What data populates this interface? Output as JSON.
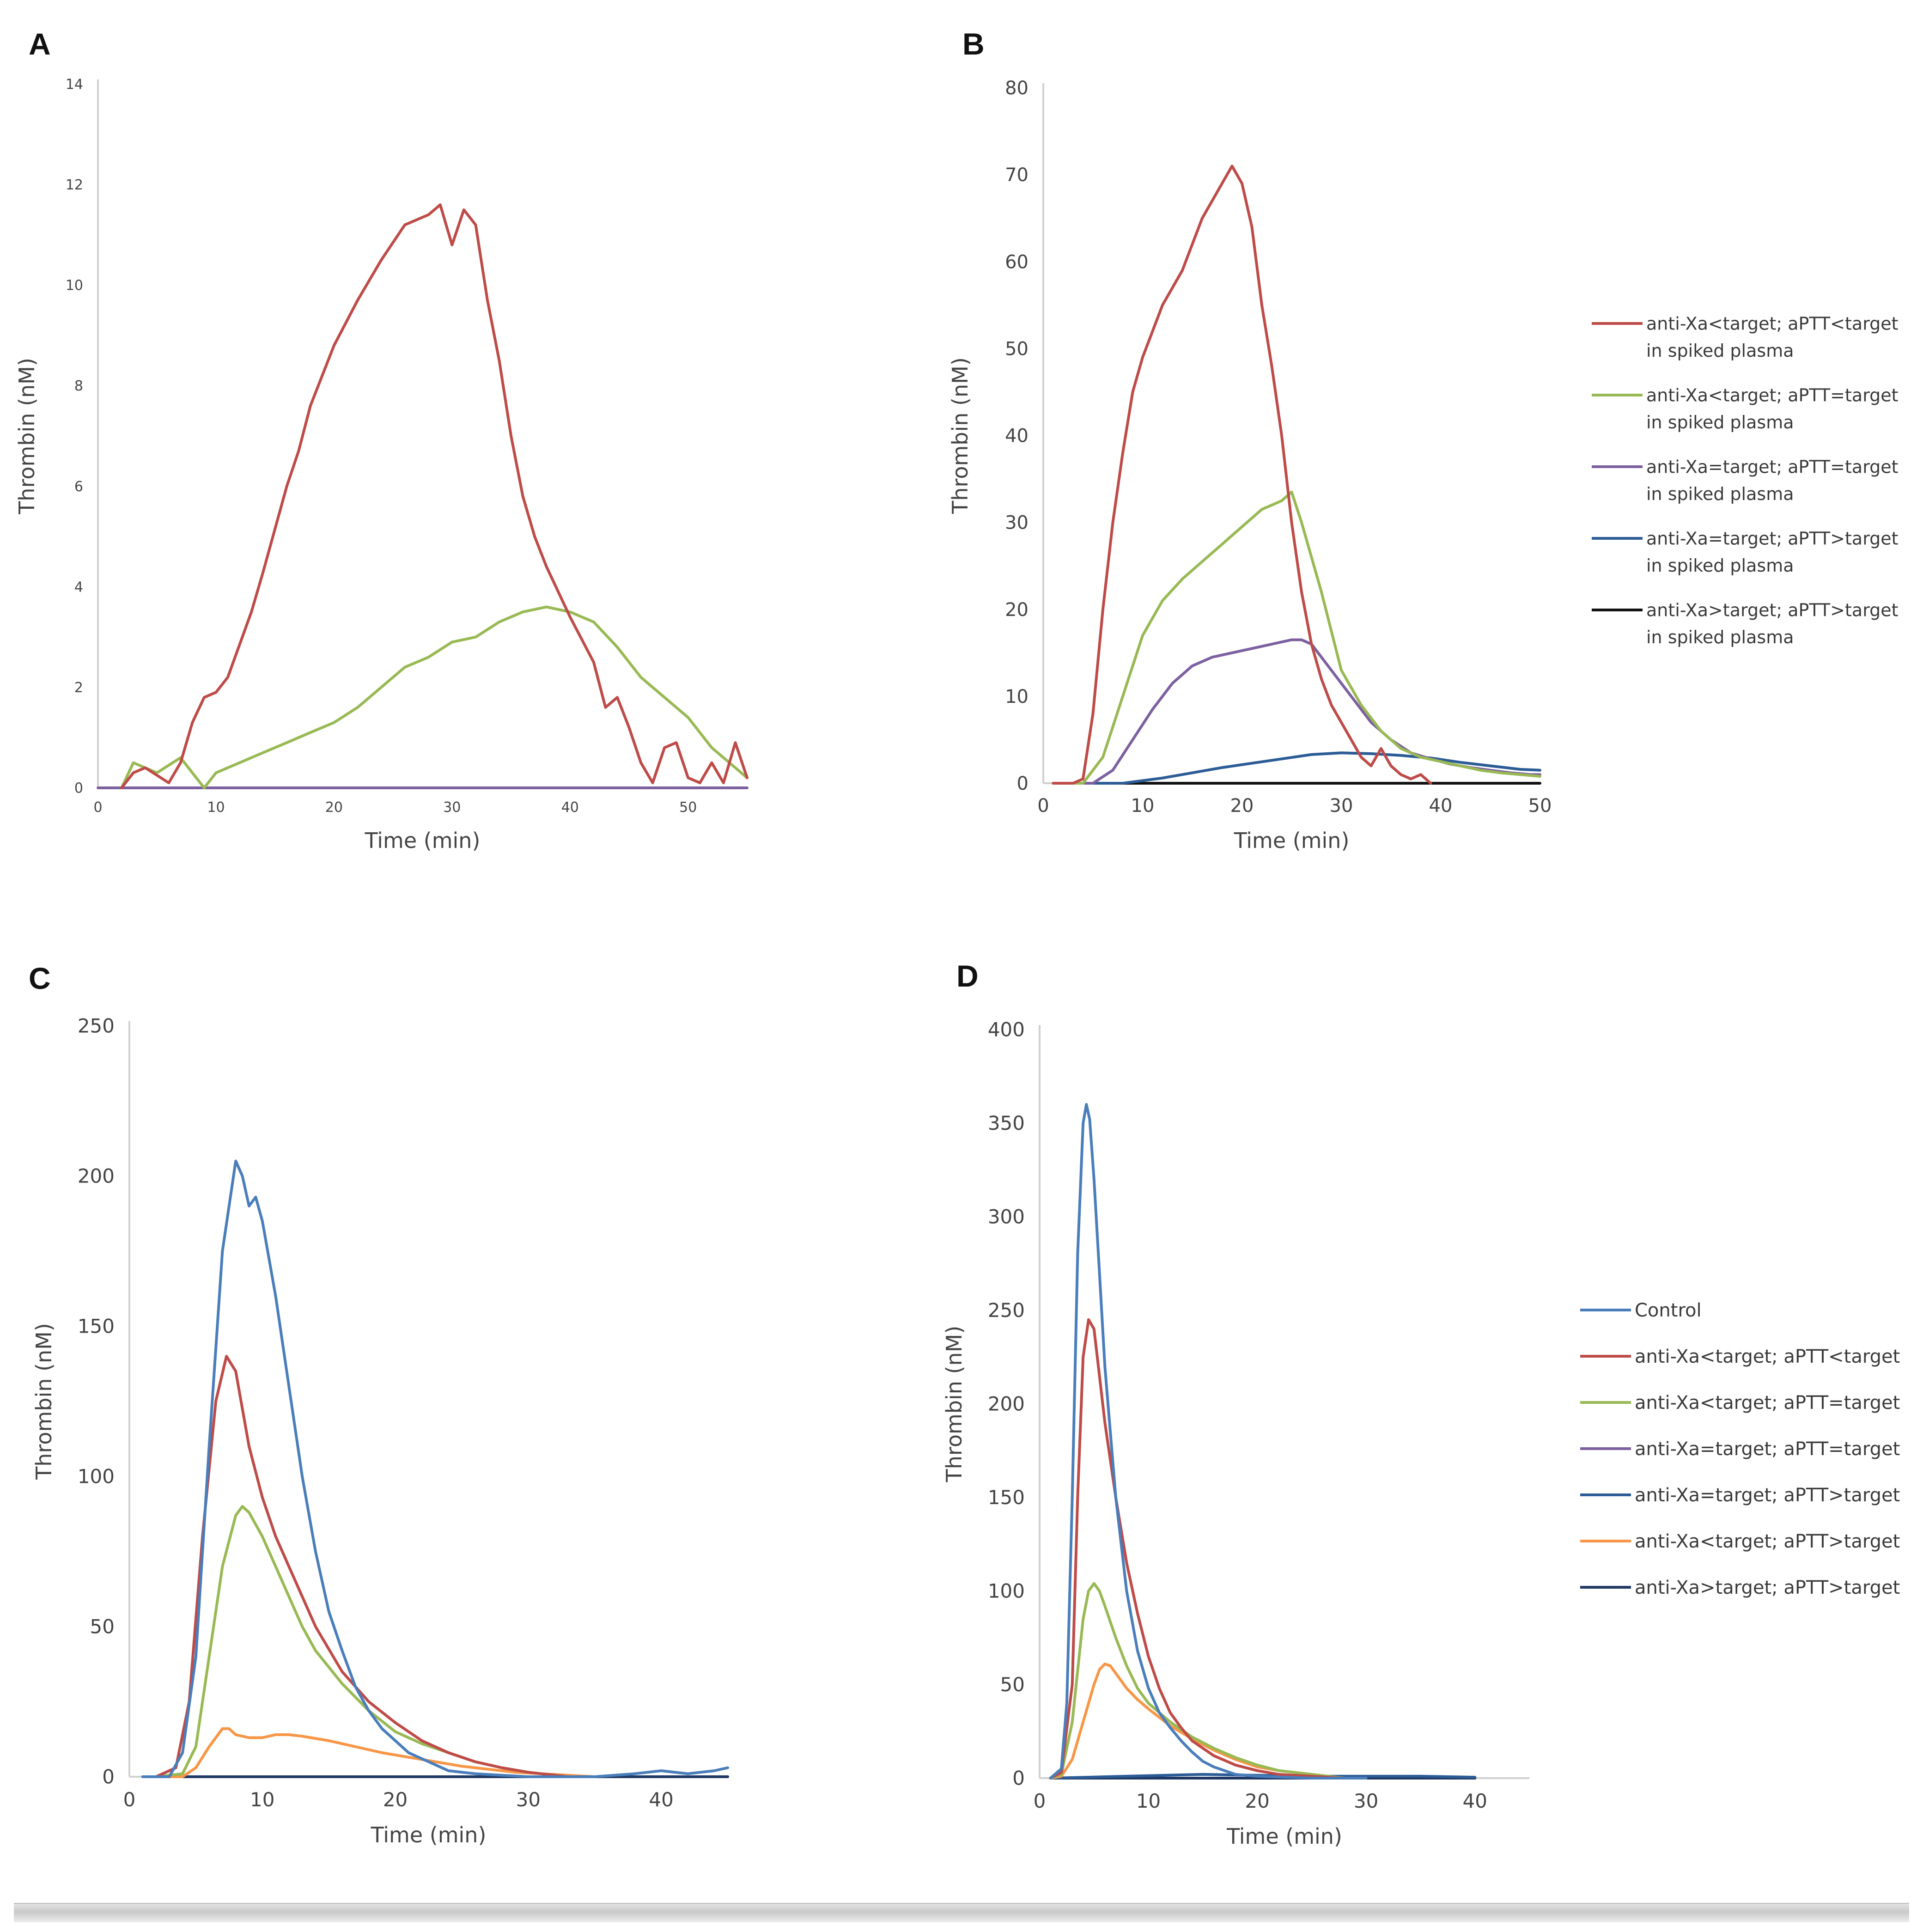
{
  "colors": {
    "control": "#4a7ebb",
    "red": "#be4b48",
    "green": "#98b954",
    "purple": "#7d60a0",
    "blue": "#2c5c96",
    "orange": "#f79646",
    "black": "#111111",
    "darkblue": "#1f3864"
  },
  "chart_data": [
    {
      "panel": "A",
      "type": "line",
      "title": "",
      "xlabel": "Time (min)",
      "ylabel": "Thrombin (nM)",
      "xlim": [
        0,
        55
      ],
      "ylim": [
        0,
        14
      ],
      "xticks": [
        0,
        10,
        20,
        30,
        40,
        50
      ],
      "yticks": [
        0,
        2,
        4,
        6,
        8,
        10,
        12,
        14
      ],
      "legend": "none",
      "series": [
        {
          "name": "anti-Xa<target; aPTT<target in spiked plasma",
          "color": "#be4b48",
          "x": [
            2,
            3,
            4,
            6,
            7,
            8,
            9,
            10,
            11,
            13,
            14,
            16,
            17,
            18,
            20,
            22,
            24,
            26,
            28,
            29,
            30,
            31,
            32,
            33,
            34,
            35,
            36,
            37,
            38,
            40,
            42,
            43,
            44,
            45,
            46,
            47,
            48,
            49,
            50,
            51,
            52,
            53,
            54,
            55
          ],
          "y": [
            0,
            0.3,
            0.4,
            0.1,
            0.5,
            1.3,
            1.8,
            1.9,
            2.2,
            3.5,
            4.3,
            6.0,
            6.7,
            7.6,
            8.8,
            9.7,
            10.5,
            11.2,
            11.4,
            11.6,
            10.8,
            11.5,
            11.2,
            9.7,
            8.5,
            7.0,
            5.8,
            5.0,
            4.4,
            3.4,
            2.5,
            1.6,
            1.8,
            1.2,
            0.5,
            0.1,
            0.8,
            0.9,
            0.2,
            0.1,
            0.5,
            0.1,
            0.9,
            0.2
          ]
        },
        {
          "name": "anti-Xa<target; aPTT=target in spiked plasma",
          "color": "#98b954",
          "x": [
            2,
            3,
            5,
            7,
            9,
            10,
            12,
            14,
            16,
            18,
            20,
            22,
            24,
            26,
            28,
            30,
            32,
            34,
            36,
            38,
            40,
            42,
            44,
            46,
            48,
            50,
            52,
            54,
            55
          ],
          "y": [
            0,
            0.5,
            0.3,
            0.6,
            0,
            0.3,
            0.5,
            0.7,
            0.9,
            1.1,
            1.3,
            1.6,
            2.0,
            2.4,
            2.6,
            2.9,
            3.0,
            3.3,
            3.5,
            3.6,
            3.5,
            3.3,
            2.8,
            2.2,
            1.8,
            1.4,
            0.8,
            0.4,
            0.2
          ]
        },
        {
          "name": "anti-Xa=target; aPTT=target in spiked plasma",
          "color": "#7d60a0",
          "x": [
            0,
            55
          ],
          "y": [
            0,
            0
          ]
        }
      ]
    },
    {
      "panel": "B",
      "type": "line",
      "title": "",
      "xlabel": "Time (min)",
      "ylabel": "Thrombin (nM)",
      "xlim": [
        0,
        50
      ],
      "ylim": [
        0,
        80
      ],
      "xticks": [
        0,
        10,
        20,
        30,
        40,
        50
      ],
      "yticks": [
        0,
        10,
        20,
        30,
        40,
        50,
        60,
        70,
        80
      ],
      "legend": "right",
      "series": [
        {
          "name": "anti-Xa<target; aPTT<target in spiked plasma",
          "legend_line1": "anti-Xa<target; aPTT<target",
          "legend_line2": "in spiked plasma",
          "color": "#be4b48",
          "x": [
            1,
            3,
            4,
            5,
            6,
            7,
            8,
            9,
            10,
            11,
            12,
            13,
            14,
            15,
            16,
            17,
            18,
            19,
            20,
            21,
            22,
            23,
            24,
            25,
            26,
            27,
            28,
            29,
            30,
            31,
            32,
            33,
            34,
            35,
            36,
            37,
            38,
            39
          ],
          "y": [
            0,
            0,
            0.5,
            8,
            20,
            30,
            38,
            45,
            49,
            52,
            55,
            57,
            59,
            62,
            65,
            67,
            69,
            71,
            69,
            64,
            55,
            48,
            40,
            30,
            22,
            16,
            12,
            9,
            7,
            5,
            3,
            2,
            4,
            2,
            1,
            0.5,
            1,
            0
          ]
        },
        {
          "name": "anti-Xa<target; aPTT=target in spiked plasma",
          "legend_line1": "anti-Xa<target; aPTT=target",
          "legend_line2": "in spiked plasma",
          "color": "#98b954",
          "x": [
            1,
            4,
            6,
            8,
            10,
            12,
            14,
            16,
            18,
            20,
            22,
            24,
            25,
            26,
            28,
            30,
            32,
            34,
            36,
            38,
            40,
            42,
            44,
            46,
            48,
            50
          ],
          "y": [
            0,
            0,
            3,
            10,
            17,
            21,
            23.5,
            25.5,
            27.5,
            29.5,
            31.5,
            32.5,
            33.5,
            30,
            22,
            13,
            9,
            6,
            4,
            3,
            2.5,
            2,
            1.5,
            1.2,
            1,
            0.8
          ]
        },
        {
          "name": "anti-Xa=target; aPTT=target in spiked plasma",
          "legend_line1": "anti-Xa=target; aPTT=target",
          "legend_line2": "in spiked plasma",
          "color": "#7d60a0",
          "x": [
            1,
            5,
            7,
            9,
            11,
            13,
            15,
            17,
            19,
            21,
            23,
            25,
            26,
            27,
            29,
            31,
            33,
            35,
            37,
            39,
            41,
            43,
            45,
            47,
            49,
            50
          ],
          "y": [
            0,
            0,
            1.5,
            5,
            8.5,
            11.5,
            13.5,
            14.5,
            15,
            15.5,
            16,
            16.5,
            16.5,
            16,
            13,
            10,
            7,
            5,
            3.5,
            2.8,
            2.2,
            1.8,
            1.5,
            1.2,
            1,
            1
          ]
        },
        {
          "name": "anti-Xa=target; aPTT>target in spiked plasma",
          "legend_line1": "anti-Xa=target; aPTT>target",
          "legend_line2": "in spiked plasma",
          "color": "#2c5c96",
          "x": [
            1,
            8,
            10,
            12,
            15,
            18,
            21,
            24,
            27,
            30,
            33,
            36,
            39,
            42,
            45,
            48,
            50
          ],
          "y": [
            0,
            0,
            0.3,
            0.6,
            1.2,
            1.8,
            2.3,
            2.8,
            3.3,
            3.5,
            3.4,
            3.2,
            2.9,
            2.4,
            2.0,
            1.6,
            1.5
          ]
        },
        {
          "name": "anti-Xa>target; aPTT>target in spiked plasma",
          "legend_line1": "anti-Xa>target; aPTT>target",
          "legend_line2": "in spiked plasma",
          "color": "#111111",
          "x": [
            1,
            50
          ],
          "y": [
            0,
            0
          ]
        }
      ]
    },
    {
      "panel": "C",
      "type": "line",
      "title": "",
      "xlabel": "Time (min)",
      "ylabel": "Thrombin (nM)",
      "xlim": [
        0,
        45
      ],
      "ylim": [
        0,
        250
      ],
      "xticks": [
        0,
        10,
        20,
        30,
        40
      ],
      "yticks": [
        0,
        50,
        100,
        150,
        200,
        250
      ],
      "legend": "none",
      "series": [
        {
          "name": "Control",
          "color": "#4a7ebb",
          "x": [
            1,
            3,
            4,
            5,
            6,
            7,
            8,
            8.5,
            9,
            9.5,
            10,
            11,
            12,
            13,
            14,
            15,
            16,
            17,
            18,
            19,
            20,
            21,
            22,
            23,
            24,
            26,
            30,
            35,
            38,
            40,
            42,
            44,
            45
          ],
          "y": [
            0,
            0,
            8,
            40,
            110,
            175,
            205,
            200,
            190,
            193,
            185,
            160,
            130,
            100,
            75,
            55,
            42,
            30,
            22,
            16,
            12,
            8,
            6,
            4,
            2,
            1,
            0,
            0,
            1,
            2,
            1,
            2,
            3
          ]
        },
        {
          "name": "anti-Xa<target; aPTT<target",
          "color": "#be4b48",
          "x": [
            2,
            3.5,
            4.5,
            5.5,
            6.5,
            7.3,
            8,
            9,
            10,
            11,
            12,
            13,
            14,
            16,
            18,
            20,
            22,
            24,
            26,
            28,
            30,
            33
          ],
          "y": [
            0,
            3,
            25,
            80,
            125,
            140,
            135,
            110,
            93,
            80,
            70,
            60,
            50,
            35,
            25,
            18,
            12,
            8,
            5,
            3,
            1.5,
            0
          ]
        },
        {
          "name": "anti-Xa<target; aPTT=target",
          "color": "#98b954",
          "x": [
            2,
            4,
            5,
            6,
            7,
            8,
            8.5,
            9,
            10,
            11,
            12,
            13,
            14,
            16,
            18,
            20,
            22,
            24,
            26,
            28,
            30,
            33
          ],
          "y": [
            0,
            1,
            10,
            40,
            70,
            87,
            90,
            88,
            80,
            70,
            60,
            50,
            42,
            31,
            22,
            15,
            11,
            8,
            5,
            3,
            1.5,
            0
          ]
        },
        {
          "name": "anti-Xa=target; aPTT=target",
          "color": "#7d60a0",
          "x": [
            1,
            45
          ],
          "y": [
            0,
            0
          ]
        },
        {
          "name": "anti-Xa=target; aPTT>target",
          "color": "#2c5c96",
          "x": [
            1,
            45
          ],
          "y": [
            0,
            0
          ]
        },
        {
          "name": "anti-Xa<target; aPTT>target",
          "color": "#f79646",
          "x": [
            2,
            4,
            5,
            6,
            7,
            7.5,
            8,
            9,
            10,
            11,
            12,
            13,
            15,
            17,
            19,
            21,
            23,
            25,
            27,
            29,
            31,
            33,
            35
          ],
          "y": [
            0,
            0,
            3,
            10,
            16,
            16,
            14,
            13,
            13,
            14,
            14,
            13.5,
            12,
            10,
            8,
            6.5,
            5,
            3.5,
            2.5,
            1.5,
            1,
            0.5,
            0
          ]
        },
        {
          "name": "anti-Xa>target; aPTT>target",
          "color": "#1f3864",
          "x": [
            1,
            45
          ],
          "y": [
            0,
            0
          ]
        }
      ]
    },
    {
      "panel": "D",
      "type": "line",
      "title": "",
      "xlabel": "Time (min)",
      "ylabel": "Thrombin (nM)",
      "xlim": [
        0,
        45
      ],
      "ylim": [
        0,
        400
      ],
      "xticks": [
        0,
        10,
        20,
        30,
        40
      ],
      "yticks": [
        0,
        50,
        100,
        150,
        200,
        250,
        300,
        350,
        400
      ],
      "legend": "right",
      "series": [
        {
          "name": "Control",
          "color": "#4a7ebb",
          "x": [
            1,
            2,
            2.5,
            3,
            3.5,
            4,
            4.3,
            4.6,
            5,
            5.5,
            6,
            7,
            8,
            9,
            10,
            11,
            12,
            13,
            14,
            15,
            16,
            17,
            18,
            20,
            25,
            30
          ],
          "y": [
            0,
            5,
            40,
            150,
            280,
            350,
            360,
            352,
            320,
            270,
            220,
            150,
            100,
            68,
            48,
            35,
            27,
            20,
            14,
            9,
            6,
            4,
            2,
            1,
            0,
            0
          ]
        },
        {
          "name": "anti-Xa<target; aPTT<target",
          "color": "#be4b48",
          "x": [
            1,
            2,
            3,
            3.5,
            4,
            4.5,
            5,
            5.5,
            6,
            7,
            8,
            9,
            10,
            11,
            12,
            13,
            14,
            16,
            18,
            20,
            22,
            25,
            28
          ],
          "y": [
            0,
            3,
            50,
            150,
            225,
            245,
            240,
            215,
            190,
            150,
            115,
            88,
            65,
            48,
            35,
            27,
            20,
            12,
            7,
            4,
            2,
            1,
            0
          ]
        },
        {
          "name": "anti-Xa<target; aPTT=target",
          "color": "#98b954",
          "x": [
            1,
            2,
            3,
            4,
            4.5,
            5,
            5.5,
            6,
            7,
            8,
            9,
            10,
            12,
            14,
            16,
            18,
            20,
            22,
            25,
            28
          ],
          "y": [
            0,
            2,
            30,
            85,
            100,
            104,
            100,
            92,
            75,
            60,
            48,
            40,
            30,
            22,
            16,
            11,
            7,
            4,
            2,
            0
          ]
        },
        {
          "name": "anti-Xa=target; aPTT=target",
          "color": "#7d60a0",
          "x": [
            1,
            40
          ],
          "y": [
            0,
            0
          ]
        },
        {
          "name": "anti-Xa=target; aPTT>target",
          "color": "#2c5c96",
          "x": [
            1,
            8,
            15,
            20,
            25,
            30,
            35,
            40
          ],
          "y": [
            0,
            1,
            2,
            1.5,
            1,
            1,
            1,
            0.5
          ]
        },
        {
          "name": "anti-Xa<target; aPTT>target",
          "color": "#f79646",
          "x": [
            1,
            2,
            3,
            4,
            5,
            5.5,
            6,
            6.5,
            7,
            8,
            9,
            10,
            12,
            14,
            16,
            18,
            20,
            22,
            25,
            28
          ],
          "y": [
            0,
            1,
            10,
            30,
            50,
            58,
            61,
            60,
            56,
            48,
            42,
            37,
            28,
            21,
            15,
            10,
            6,
            4,
            2,
            0
          ]
        },
        {
          "name": "anti-Xa>target; aPTT>target",
          "color": "#1f3864",
          "x": [
            1,
            40
          ],
          "y": [
            0,
            0
          ]
        }
      ]
    }
  ]
}
